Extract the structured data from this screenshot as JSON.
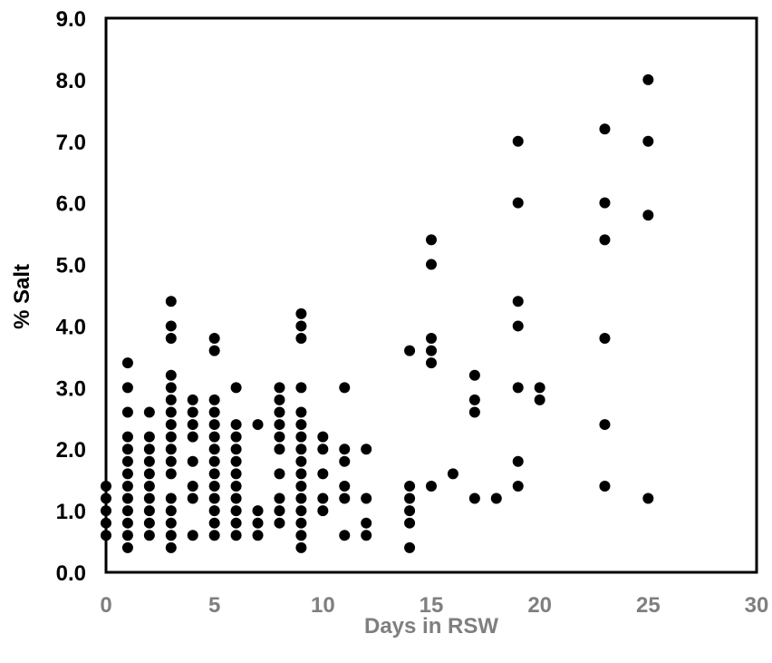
{
  "chart_data": {
    "type": "scatter",
    "title": "",
    "xlabel": "Days in RSW",
    "ylabel": "% Salt",
    "xlim": [
      0,
      30
    ],
    "ylim": [
      0,
      9
    ],
    "x_ticks": [
      "0",
      "5",
      "10",
      "15",
      "20",
      "25",
      "30"
    ],
    "y_ticks": [
      "0.0",
      "1.0",
      "2.0",
      "3.0",
      "4.0",
      "5.0",
      "6.0",
      "7.0",
      "8.0",
      "9.0"
    ],
    "grid": false,
    "legend": "none",
    "colors": {
      "marker": "#000000",
      "frame": "#000000",
      "x_axis_text": "#7f7f7f",
      "y_axis_text": "#000000"
    },
    "series": [
      {
        "points": [
          [
            0,
            0.6
          ],
          [
            0,
            0.8
          ],
          [
            0,
            1.0
          ],
          [
            0,
            1.2
          ],
          [
            0,
            1.4
          ],
          [
            1,
            0.4
          ],
          [
            1,
            0.6
          ],
          [
            1,
            0.8
          ],
          [
            1,
            1.0
          ],
          [
            1,
            1.2
          ],
          [
            1,
            1.4
          ],
          [
            1,
            1.6
          ],
          [
            1,
            1.8
          ],
          [
            1,
            2.0
          ],
          [
            1,
            2.2
          ],
          [
            1,
            2.6
          ],
          [
            1,
            3.0
          ],
          [
            1,
            3.4
          ],
          [
            2,
            0.6
          ],
          [
            2,
            0.8
          ],
          [
            2,
            1.0
          ],
          [
            2,
            1.2
          ],
          [
            2,
            1.4
          ],
          [
            2,
            1.6
          ],
          [
            2,
            1.8
          ],
          [
            2,
            2.0
          ],
          [
            2,
            2.2
          ],
          [
            2,
            2.6
          ],
          [
            3,
            0.4
          ],
          [
            3,
            0.6
          ],
          [
            3,
            0.8
          ],
          [
            3,
            1.0
          ],
          [
            3,
            1.2
          ],
          [
            3,
            1.6
          ],
          [
            3,
            1.8
          ],
          [
            3,
            2.0
          ],
          [
            3,
            2.2
          ],
          [
            3,
            2.4
          ],
          [
            3,
            2.6
          ],
          [
            3,
            2.8
          ],
          [
            3,
            3.0
          ],
          [
            3,
            3.2
          ],
          [
            3,
            3.8
          ],
          [
            3,
            4.0
          ],
          [
            3,
            4.4
          ],
          [
            4,
            0.6
          ],
          [
            4,
            1.2
          ],
          [
            4,
            1.4
          ],
          [
            4,
            1.8
          ],
          [
            4,
            2.2
          ],
          [
            4,
            2.4
          ],
          [
            4,
            2.6
          ],
          [
            4,
            2.8
          ],
          [
            5,
            0.6
          ],
          [
            5,
            0.8
          ],
          [
            5,
            1.0
          ],
          [
            5,
            1.2
          ],
          [
            5,
            1.4
          ],
          [
            5,
            1.6
          ],
          [
            5,
            1.8
          ],
          [
            5,
            2.0
          ],
          [
            5,
            2.2
          ],
          [
            5,
            2.4
          ],
          [
            5,
            2.6
          ],
          [
            5,
            2.8
          ],
          [
            5,
            3.6
          ],
          [
            5,
            3.8
          ],
          [
            6,
            0.6
          ],
          [
            6,
            0.8
          ],
          [
            6,
            1.0
          ],
          [
            6,
            1.2
          ],
          [
            6,
            1.4
          ],
          [
            6,
            1.6
          ],
          [
            6,
            1.8
          ],
          [
            6,
            2.0
          ],
          [
            6,
            2.2
          ],
          [
            6,
            2.4
          ],
          [
            6,
            3.0
          ],
          [
            7,
            0.6
          ],
          [
            7,
            0.8
          ],
          [
            7,
            1.0
          ],
          [
            7,
            2.4
          ],
          [
            8,
            0.8
          ],
          [
            8,
            1.0
          ],
          [
            8,
            1.2
          ],
          [
            8,
            1.6
          ],
          [
            8,
            2.0
          ],
          [
            8,
            2.2
          ],
          [
            8,
            2.4
          ],
          [
            8,
            2.6
          ],
          [
            8,
            2.8
          ],
          [
            8,
            3.0
          ],
          [
            9,
            0.4
          ],
          [
            9,
            0.6
          ],
          [
            9,
            0.8
          ],
          [
            9,
            1.0
          ],
          [
            9,
            1.2
          ],
          [
            9,
            1.4
          ],
          [
            9,
            1.6
          ],
          [
            9,
            1.8
          ],
          [
            9,
            2.0
          ],
          [
            9,
            2.2
          ],
          [
            9,
            2.4
          ],
          [
            9,
            2.6
          ],
          [
            9,
            3.0
          ],
          [
            9,
            3.8
          ],
          [
            9,
            4.0
          ],
          [
            9,
            4.2
          ],
          [
            10,
            1.0
          ],
          [
            10,
            1.2
          ],
          [
            10,
            1.6
          ],
          [
            10,
            2.0
          ],
          [
            10,
            2.2
          ],
          [
            11,
            0.6
          ],
          [
            11,
            1.2
          ],
          [
            11,
            1.4
          ],
          [
            11,
            1.8
          ],
          [
            11,
            2.0
          ],
          [
            11,
            3.0
          ],
          [
            12,
            0.6
          ],
          [
            12,
            0.8
          ],
          [
            12,
            1.2
          ],
          [
            12,
            2.0
          ],
          [
            14,
            0.4
          ],
          [
            14,
            0.8
          ],
          [
            14,
            1.0
          ],
          [
            14,
            1.2
          ],
          [
            14,
            1.4
          ],
          [
            14,
            3.6
          ],
          [
            15,
            1.4
          ],
          [
            15,
            3.4
          ],
          [
            15,
            3.6
          ],
          [
            15,
            3.8
          ],
          [
            15,
            5.0
          ],
          [
            15,
            5.4
          ],
          [
            16,
            1.6
          ],
          [
            17,
            1.2
          ],
          [
            17,
            2.6
          ],
          [
            17,
            2.8
          ],
          [
            17,
            3.2
          ],
          [
            18,
            1.2
          ],
          [
            19,
            1.4
          ],
          [
            19,
            1.8
          ],
          [
            19,
            3.0
          ],
          [
            19,
            4.0
          ],
          [
            19,
            4.4
          ],
          [
            19,
            6.0
          ],
          [
            19,
            7.0
          ],
          [
            20,
            2.8
          ],
          [
            20,
            3.0
          ],
          [
            23,
            1.4
          ],
          [
            23,
            2.4
          ],
          [
            23,
            3.8
          ],
          [
            23,
            5.4
          ],
          [
            23,
            6.0
          ],
          [
            23,
            7.2
          ],
          [
            25,
            1.2
          ],
          [
            25,
            5.8
          ],
          [
            25,
            7.0
          ],
          [
            25,
            8.0
          ]
        ]
      }
    ]
  }
}
